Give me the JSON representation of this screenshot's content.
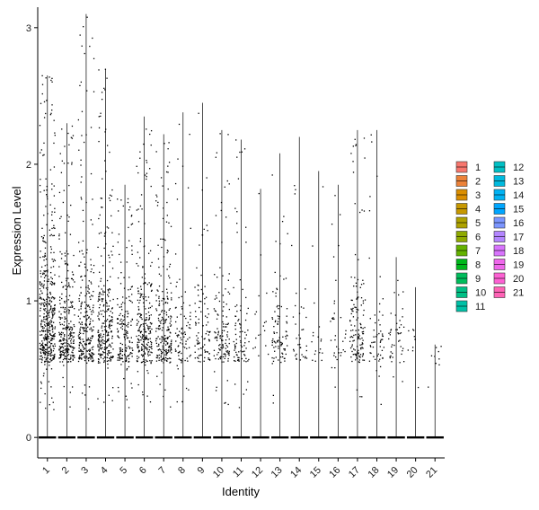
{
  "chart_data": {
    "type": "violin",
    "xlabel": "Identity",
    "ylabel": "Expression Level",
    "ylim": [
      -0.15,
      3.15
    ],
    "yticks": [
      0,
      1,
      2,
      3
    ],
    "grid": false,
    "legend_position": "right",
    "categories": [
      "1",
      "2",
      "3",
      "4",
      "5",
      "6",
      "7",
      "8",
      "9",
      "10",
      "11",
      "12",
      "13",
      "14",
      "15",
      "16",
      "17",
      "18",
      "19",
      "20",
      "21"
    ],
    "series": [
      {
        "name": "1",
        "color": "#F8766D",
        "max": 2.65,
        "density": 0.5
      },
      {
        "name": "2",
        "color": "#EC8239",
        "max": 2.3,
        "density": 0.32
      },
      {
        "name": "3",
        "color": "#DB8E00",
        "max": 3.1,
        "density": 0.3
      },
      {
        "name": "4",
        "color": "#C79800",
        "max": 2.7,
        "density": 0.3
      },
      {
        "name": "5",
        "color": "#AEA200",
        "max": 1.85,
        "density": 0.2
      },
      {
        "name": "6",
        "color": "#8FAA00",
        "max": 2.35,
        "density": 0.28
      },
      {
        "name": "7",
        "color": "#64B200",
        "max": 2.22,
        "density": 0.26
      },
      {
        "name": "8",
        "color": "#00B81B",
        "max": 2.38,
        "density": 0.1
      },
      {
        "name": "9",
        "color": "#00BD5C",
        "max": 2.45,
        "density": 0.1
      },
      {
        "name": "10",
        "color": "#00C085",
        "max": 2.25,
        "density": 0.14
      },
      {
        "name": "11",
        "color": "#00C1A7",
        "max": 2.18,
        "density": 0.1
      },
      {
        "name": "12",
        "color": "#00BFC4",
        "max": 1.82,
        "density": 0.02
      },
      {
        "name": "13",
        "color": "#00BADE",
        "max": 2.08,
        "density": 0.1
      },
      {
        "name": "14",
        "color": "#00B2F3",
        "max": 2.2,
        "density": 0.04
      },
      {
        "name": "15",
        "color": "#00A6FF",
        "max": 1.95,
        "density": 0.02
      },
      {
        "name": "16",
        "color": "#7C96FF",
        "max": 1.85,
        "density": 0.04
      },
      {
        "name": "17",
        "color": "#B385FF",
        "max": 2.25,
        "density": 0.15
      },
      {
        "name": "18",
        "color": "#D874FD",
        "max": 2.25,
        "density": 0.06
      },
      {
        "name": "19",
        "color": "#EF67EB",
        "max": 1.32,
        "density": 0.05
      },
      {
        "name": "20",
        "color": "#FD61D3",
        "max": 1.1,
        "density": 0.01
      },
      {
        "name": "21",
        "color": "#FF63B6",
        "max": 0.68,
        "density": 0.01
      }
    ]
  }
}
